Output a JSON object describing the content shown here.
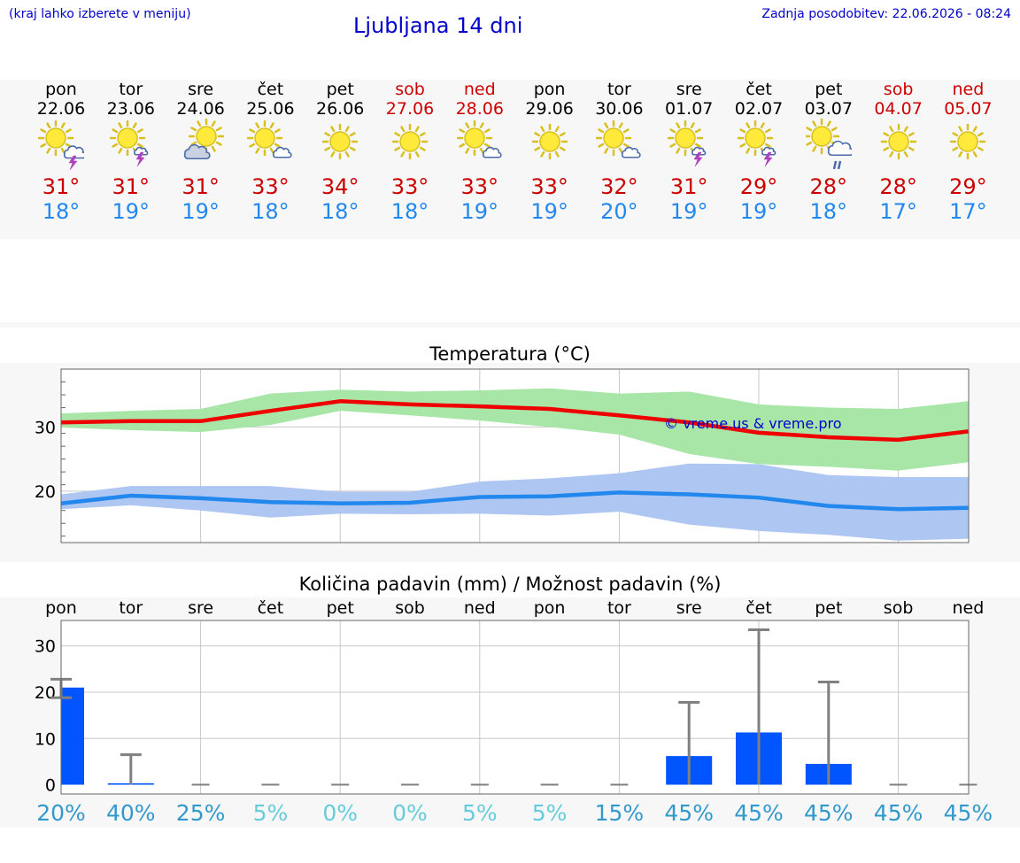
{
  "header": {
    "hint": "(kraj lahko izberete v meniju)",
    "title": "Ljubljana 14 dni",
    "updated": "Zadnja posodobitev: 22.06.2026 - 08:24"
  },
  "days": [
    {
      "name": "pon",
      "date": "22.06",
      "weekend": false,
      "icon": "sun-cloud-thunder-icon",
      "tmax": "31°",
      "tmin": "18°"
    },
    {
      "name": "tor",
      "date": "23.06",
      "weekend": false,
      "icon": "sun-thunder-icon",
      "tmax": "31°",
      "tmin": "19°"
    },
    {
      "name": "sre",
      "date": "24.06",
      "weekend": false,
      "icon": "sun-behind-cloud-icon",
      "tmax": "31°",
      "tmin": "19°"
    },
    {
      "name": "čet",
      "date": "25.06",
      "weekend": false,
      "icon": "sun-small-cloud-icon",
      "tmax": "33°",
      "tmin": "18°"
    },
    {
      "name": "pet",
      "date": "26.06",
      "weekend": false,
      "icon": "sun-icon",
      "tmax": "34°",
      "tmin": "18°"
    },
    {
      "name": "sob",
      "date": "27.06",
      "weekend": true,
      "icon": "sun-icon",
      "tmax": "33°",
      "tmin": "18°"
    },
    {
      "name": "ned",
      "date": "28.06",
      "weekend": true,
      "icon": "sun-small-cloud-icon",
      "tmax": "33°",
      "tmin": "19°"
    },
    {
      "name": "pon",
      "date": "29.06",
      "weekend": false,
      "icon": "sun-icon",
      "tmax": "33°",
      "tmin": "19°"
    },
    {
      "name": "tor",
      "date": "30.06",
      "weekend": false,
      "icon": "sun-small-cloud-icon",
      "tmax": "32°",
      "tmin": "20°"
    },
    {
      "name": "sre",
      "date": "01.07",
      "weekend": false,
      "icon": "sun-thunder-icon",
      "tmax": "31°",
      "tmin": "19°"
    },
    {
      "name": "čet",
      "date": "02.07",
      "weekend": false,
      "icon": "sun-thunder-icon",
      "tmax": "29°",
      "tmin": "19°"
    },
    {
      "name": "pet",
      "date": "03.07",
      "weekend": false,
      "icon": "sun-cloud-rain-icon",
      "tmax": "28°",
      "tmin": "18°"
    },
    {
      "name": "sob",
      "date": "04.07",
      "weekend": true,
      "icon": "sun-icon",
      "tmax": "28°",
      "tmin": "17°"
    },
    {
      "name": "ned",
      "date": "05.07",
      "weekend": true,
      "icon": "sun-icon",
      "tmax": "29°",
      "tmin": "17°"
    }
  ],
  "colors": {
    "max_line": "#ee0000",
    "min_line": "#2288ee",
    "max_band": "#a8e6a8",
    "min_band": "#aec6f2",
    "precip_bar": "#0055ff",
    "precip_error": "#808080",
    "watermark": "#0000cc",
    "chance_high": "#3399cc",
    "chance_low": "#66ccdd"
  },
  "chart_data": [
    {
      "type": "line",
      "title": "Temperatura (°C)",
      "x": [
        "22.06",
        "23.06",
        "24.06",
        "25.06",
        "26.06",
        "27.06",
        "28.06",
        "29.06",
        "30.06",
        "01.07",
        "02.07",
        "03.07",
        "04.07",
        "05.07"
      ],
      "ylim": [
        12,
        39
      ],
      "yticks": [
        20,
        30
      ],
      "series": [
        {
          "name": "max",
          "values": [
            30.7,
            30.9,
            30.9,
            32.5,
            34.0,
            33.5,
            33.2,
            32.8,
            31.8,
            30.7,
            29.1,
            28.4,
            28.0,
            29.3
          ]
        },
        {
          "name": "max_low",
          "values": [
            29.9,
            29.5,
            29.2,
            30.3,
            32.5,
            31.8,
            31.0,
            30.0,
            28.8,
            25.8,
            24.2,
            23.8,
            23.2,
            24.5
          ]
        },
        {
          "name": "max_high",
          "values": [
            32.1,
            32.5,
            32.8,
            35.2,
            35.8,
            35.5,
            35.7,
            36.0,
            35.2,
            35.5,
            33.5,
            33.0,
            32.8,
            34.0
          ]
        },
        {
          "name": "min",
          "values": [
            18.1,
            19.3,
            18.9,
            18.3,
            18.1,
            18.2,
            19.1,
            19.2,
            19.8,
            19.5,
            19.0,
            17.7,
            17.2,
            17.4
          ]
        },
        {
          "name": "min_low",
          "values": [
            17.2,
            17.8,
            17.0,
            15.9,
            16.5,
            16.4,
            16.5,
            16.2,
            16.8,
            14.8,
            13.8,
            13.2,
            12.3,
            12.6
          ]
        },
        {
          "name": "min_high",
          "values": [
            19.5,
            20.8,
            20.8,
            20.8,
            19.9,
            19.9,
            21.5,
            22.0,
            22.8,
            24.3,
            24.2,
            22.5,
            22.2,
            22.2
          ]
        }
      ],
      "watermark": "© vreme.us & vreme.pro",
      "grid": true
    },
    {
      "type": "bar",
      "title": "Količina padavin (mm) / Možnost padavin (%)",
      "categories": [
        "pon",
        "tor",
        "sre",
        "čet",
        "pet",
        "sob",
        "ned",
        "pon",
        "tor",
        "sre",
        "čet",
        "pet",
        "sob",
        "ned"
      ],
      "ylim": [
        -2,
        35.5
      ],
      "yticks": [
        0,
        10,
        20,
        30
      ],
      "values": [
        21.0,
        0.3,
        0,
        0,
        0,
        0,
        0,
        0,
        0,
        6.2,
        11.3,
        4.5,
        0,
        0
      ],
      "error_low": [
        18.8,
        0,
        0,
        0,
        0,
        0,
        0,
        0,
        0,
        0,
        0,
        0,
        0,
        0
      ],
      "error_high": [
        22.8,
        6.5,
        0,
        0,
        0,
        0,
        0,
        0,
        0,
        17.8,
        33.5,
        22.2,
        0,
        0
      ],
      "chance": [
        "20%",
        "40%",
        "25%",
        "5%",
        "0%",
        "0%",
        "5%",
        "5%",
        "15%",
        "45%",
        "45%",
        "45%",
        "45%",
        "45%"
      ],
      "chance_low": [
        false,
        false,
        false,
        true,
        true,
        true,
        true,
        true,
        false,
        false,
        false,
        false,
        false,
        false
      ],
      "grid": true
    }
  ]
}
